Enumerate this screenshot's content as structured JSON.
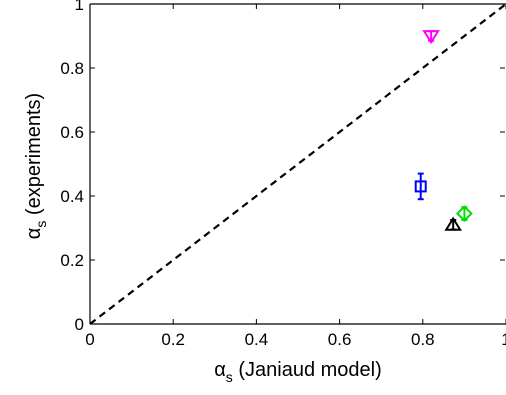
{
  "chart_data": {
    "type": "scatter",
    "title": "",
    "xlabel": {
      "symbol": "α",
      "subscript": "s",
      "text": " (Janiaud model)"
    },
    "ylabel": {
      "symbol": "α",
      "subscript": "s",
      "text": " (experiments)"
    },
    "xlim": [
      0,
      1
    ],
    "ylim": [
      0,
      1
    ],
    "x_ticks": [
      "0",
      "0.2",
      "0.4",
      "0.6",
      "0.8",
      "1"
    ],
    "y_ticks": [
      "0",
      "0.2",
      "0.4",
      "0.6",
      "0.8",
      "1"
    ],
    "grid": false,
    "legend": "none",
    "reference_line": {
      "style": "dashed",
      "x": [
        0,
        1
      ],
      "y": [
        0,
        1
      ],
      "color": "#000000"
    },
    "points": [
      {
        "marker": "triangle-down",
        "color": "#ff00ff",
        "x": 0.82,
        "y": 0.9,
        "yerr": 0.015
      },
      {
        "marker": "square",
        "color": "#0000ff",
        "x": 0.795,
        "y": 0.43,
        "yerr": 0.04
      },
      {
        "marker": "diamond",
        "color": "#00dd00",
        "x": 0.9,
        "y": 0.345,
        "yerr": 0.02
      },
      {
        "marker": "triangle-up",
        "color": "#000000",
        "x": 0.873,
        "y": 0.31,
        "yerr": 0.015
      }
    ]
  }
}
